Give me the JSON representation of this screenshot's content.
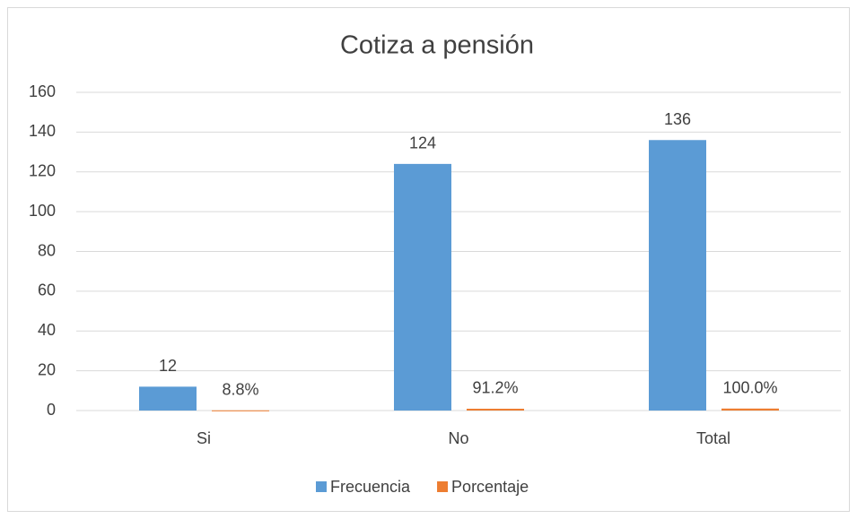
{
  "chart_data": {
    "type": "bar",
    "title": "Cotiza a pensión",
    "categories": [
      "Si",
      "No",
      "Total"
    ],
    "series": [
      {
        "name": "Frecuencia",
        "color": "#5b9bd5",
        "values": [
          12,
          124,
          136
        ]
      },
      {
        "name": "Porcentaje",
        "color": "#ed7d31",
        "values": [
          0.088,
          0.912,
          1.0
        ],
        "value_labels": [
          "8.8%",
          "91.2%",
          "100.0%"
        ]
      }
    ],
    "ylim": [
      0,
      160
    ],
    "yticks": [
      0,
      20,
      40,
      60,
      80,
      100,
      120,
      140,
      160
    ],
    "grid": true,
    "legend": "bottom"
  }
}
